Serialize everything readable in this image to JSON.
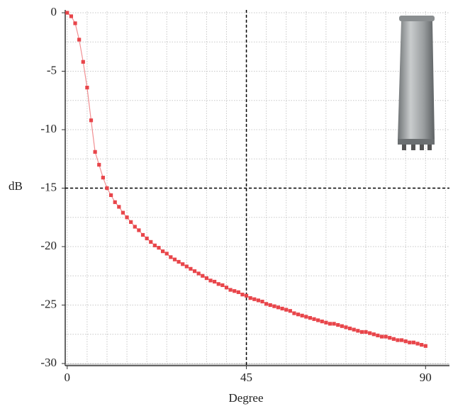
{
  "chart_data": {
    "type": "line",
    "x_label": "Degree",
    "y_label": "dB",
    "x": [
      0,
      1,
      2,
      3,
      4,
      5,
      6,
      7,
      8,
      9,
      10,
      11,
      12,
      13,
      14,
      15,
      16,
      17,
      18,
      19,
      20,
      21,
      22,
      23,
      24,
      25,
      26,
      27,
      28,
      29,
      30,
      31,
      32,
      33,
      34,
      35,
      36,
      37,
      38,
      39,
      40,
      41,
      42,
      43,
      44,
      45,
      46,
      47,
      48,
      49,
      50,
      51,
      52,
      53,
      54,
      55,
      56,
      57,
      58,
      59,
      60,
      61,
      62,
      63,
      64,
      65,
      66,
      67,
      68,
      69,
      70,
      71,
      72,
      73,
      74,
      75,
      76,
      77,
      78,
      79,
      80,
      81,
      82,
      83,
      84,
      85,
      86,
      87,
      88,
      89,
      90
    ],
    "values": [
      0,
      -0.3,
      -0.9,
      -2.3,
      -4.2,
      -6.4,
      -9.2,
      -11.9,
      -13.0,
      -14.1,
      -15.0,
      -15.6,
      -16.2,
      -16.6,
      -17.1,
      -17.5,
      -17.9,
      -18.3,
      -18.6,
      -19.0,
      -19.3,
      -19.6,
      -19.9,
      -20.1,
      -20.4,
      -20.6,
      -20.9,
      -21.1,
      -21.3,
      -21.5,
      -21.7,
      -21.9,
      -22.1,
      -22.3,
      -22.5,
      -22.7,
      -22.9,
      -23.0,
      -23.2,
      -23.3,
      -23.5,
      -23.7,
      -23.8,
      -23.9,
      -24.1,
      -24.2,
      -24.4,
      -24.5,
      -24.6,
      -24.7,
      -24.9,
      -25.0,
      -25.1,
      -25.2,
      -25.3,
      -25.4,
      -25.5,
      -25.7,
      -25.8,
      -25.9,
      -26.0,
      -26.1,
      -26.2,
      -26.3,
      -26.4,
      -26.5,
      -26.6,
      -26.6,
      -26.7,
      -26.8,
      -26.9,
      -27.0,
      -27.1,
      -27.2,
      -27.3,
      -27.3,
      -27.4,
      -27.5,
      -27.6,
      -27.7,
      -27.7,
      -27.8,
      -27.9,
      -28.0,
      -28.0,
      -28.1,
      -28.2,
      -28.2,
      -28.3,
      -28.4,
      -28.5
    ],
    "color": "#e8454a",
    "xlim": [
      -0.5,
      96
    ],
    "xticks": [
      0,
      45,
      90
    ],
    "ylim": [
      -30,
      0
    ],
    "yticks": [
      -30,
      -25,
      -20,
      -15,
      -10,
      -5,
      0
    ],
    "minor_grid": {
      "x_step": 5,
      "y_step": 2.5
    },
    "reference_lines": {
      "x": 45,
      "y": -15
    }
  }
}
